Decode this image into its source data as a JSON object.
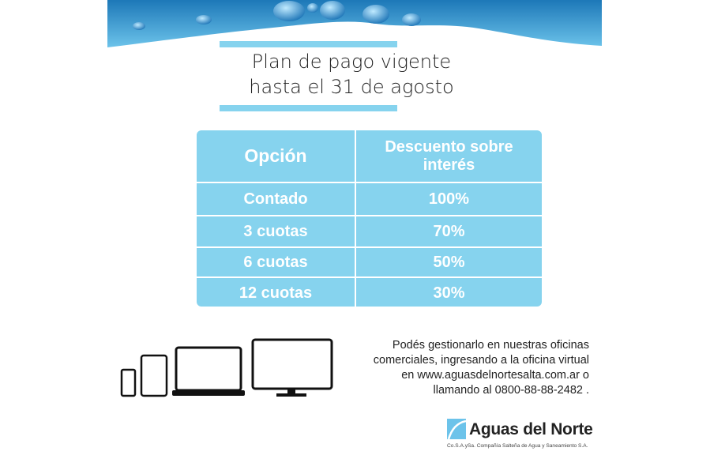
{
  "title": {
    "line1": "Plan de pago vigente",
    "line2": "hasta el 31 de agosto"
  },
  "table": {
    "headers": [
      "Opción",
      "Descuento sobre interés"
    ],
    "rows": [
      {
        "option": "Contado",
        "discount": "100%"
      },
      {
        "option": "3 cuotas",
        "discount": "70%"
      },
      {
        "option": "6 cuotas",
        "discount": "50%"
      },
      {
        "option": "12 cuotas",
        "discount": "30%"
      }
    ]
  },
  "info": {
    "line1": "Podés gestionarlo en nuestras oficinas",
    "line2": "comerciales, ingresando a la oficina virtual",
    "line3": "en www.aguasdelnortesalta.com.ar o",
    "line4": "llamando al 0800-88-88-2482 ."
  },
  "logo": {
    "name": "Aguas del Norte",
    "subtitle": "Co.S.A.ySa. Compañía Salteña de Agua y Saneamiento S.A."
  },
  "colors": {
    "accent": "#86d3ee",
    "water": "#2a8fc9",
    "text": "#222222"
  },
  "icons": [
    "water-wave-banner",
    "smartphone-icon",
    "tablet-icon",
    "laptop-icon",
    "monitor-icon"
  ]
}
